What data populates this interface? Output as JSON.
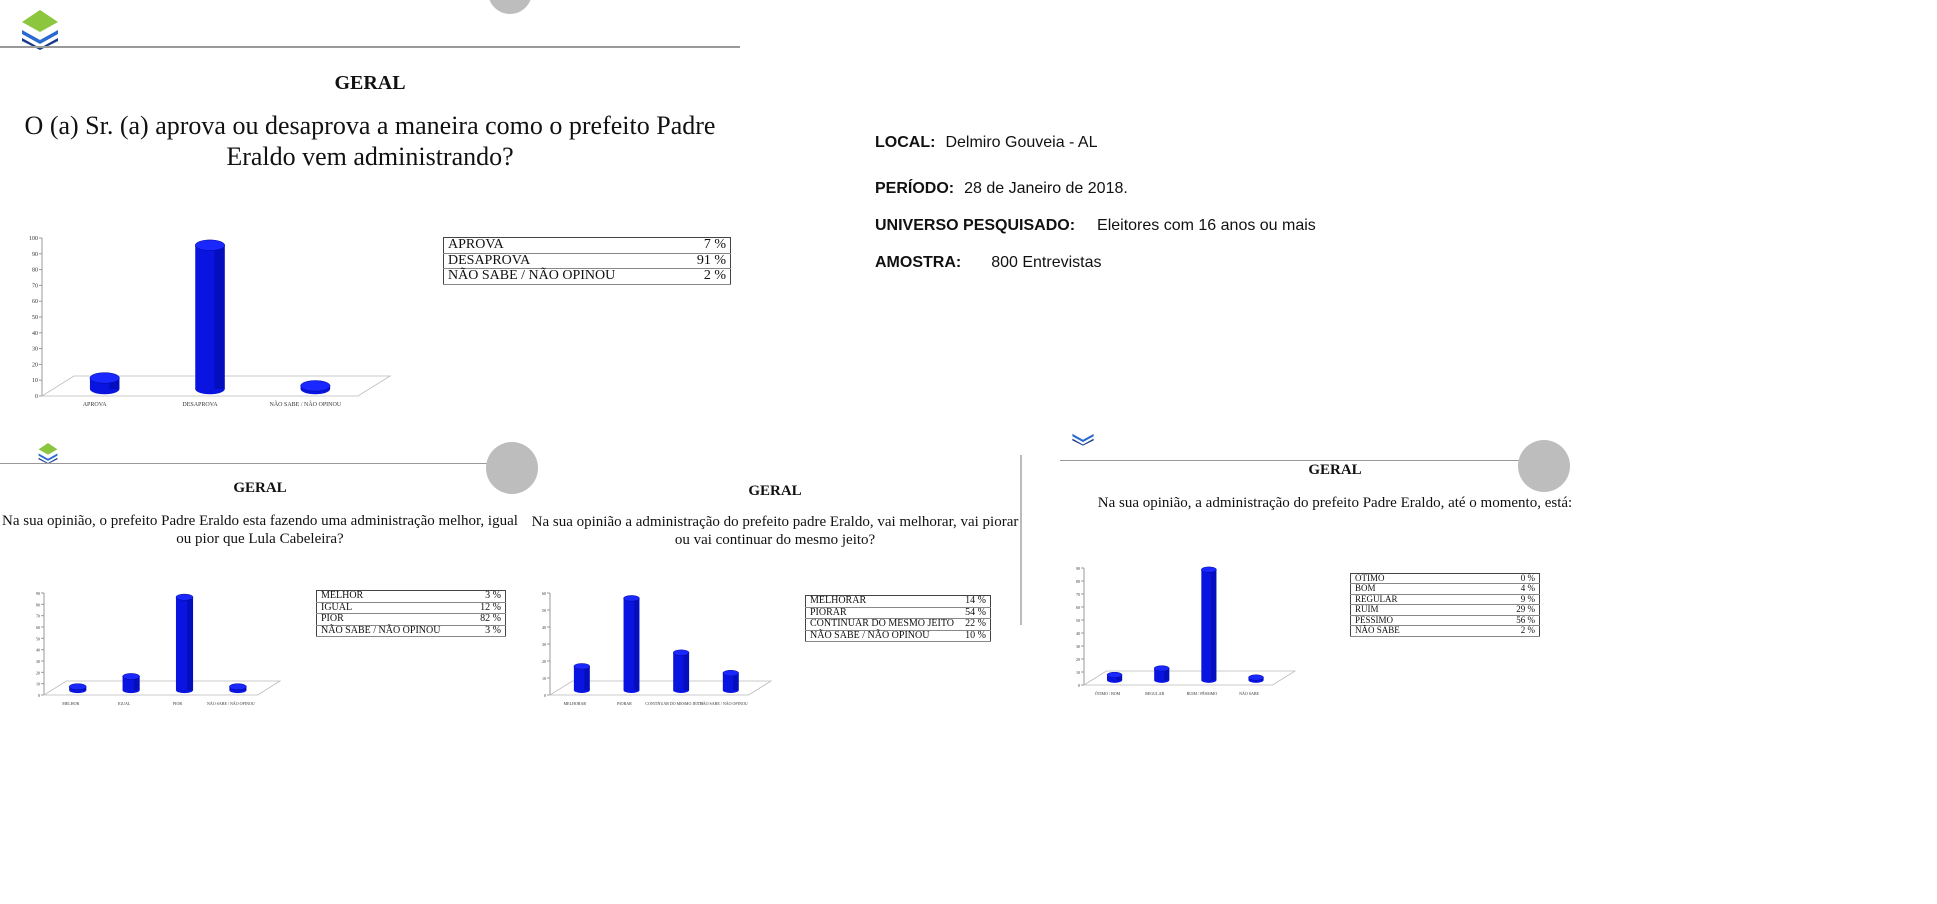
{
  "colors": {
    "bar": "#0a14e0",
    "bar_dark": "#00089a",
    "rule": "#999999"
  },
  "slides": [
    {
      "heading": "GERAL",
      "question": "O (a) Sr. (a) aprova ou desaprova a maneira como o prefeito Padre Eraldo vem administrando?",
      "table": [
        {
          "label": "APROVA",
          "value": "7 %"
        },
        {
          "label": "DESAPROVA",
          "value": "91 %"
        },
        {
          "label": "NÃO SABE / NÃO OPINOU",
          "value": "2 %"
        }
      ]
    },
    {
      "heading": "GERAL",
      "question": "Na sua opinião, o prefeito Padre Eraldo esta fazendo uma administração melhor, igual ou pior que Lula Cabeleira?",
      "table": [
        {
          "label": "MELHOR",
          "value": "3 %"
        },
        {
          "label": "IGUAL",
          "value": "12 %"
        },
        {
          "label": "PIOR",
          "value": "82 %"
        },
        {
          "label": "NÃO SABE / NÃO OPINOU",
          "value": "3 %"
        }
      ]
    },
    {
      "heading": "GERAL",
      "question": "Na sua opinião a administração do prefeito padre Eraldo, vai melhorar, vai piorar ou vai continuar do mesmo jeito?",
      "table": [
        {
          "label": "MELHORAR",
          "value": "14 %"
        },
        {
          "label": "PIORAR",
          "value": "54 %"
        },
        {
          "label": "CONTINUAR DO MESMO JEITO",
          "value": "22 %"
        },
        {
          "label": "NÃO SABE / NÃO OPINOU",
          "value": "10 %"
        }
      ]
    },
    {
      "heading": "GERAL",
      "question": "Na sua opinião, a administração do prefeito Padre Eraldo, até o momento, está:",
      "table": [
        {
          "label": "OTIMO",
          "value": "0 %"
        },
        {
          "label": "BOM",
          "value": "4 %"
        },
        {
          "label": "REGULAR",
          "value": "9 %"
        },
        {
          "label": "RUIM",
          "value": "29 %"
        },
        {
          "label": "PESSIMO",
          "value": "56 %"
        },
        {
          "label": "NÃO SABE",
          "value": "2 %"
        }
      ]
    }
  ],
  "info": {
    "local_label": "LOCAL:",
    "local_value": "Delmiro Gouveia - AL",
    "periodo_label": "PERÍODO:",
    "periodo_value": "28 de Janeiro de 2018.",
    "universo_label": "UNIVERSO PESQUISADO:",
    "universo_value": "Eleitores com 16 anos ou mais",
    "amostra_label": "AMOSTRA:",
    "amostra_value": "800 Entrevistas"
  },
  "chart_data": [
    {
      "type": "bar",
      "categories": [
        "APROVA",
        "DESAPROVA",
        "NÃO SABE / NÃO OPINOU"
      ],
      "values": [
        7,
        91,
        2
      ],
      "ylim": [
        0,
        100
      ],
      "yticks": [
        0,
        10,
        20,
        30,
        40,
        50,
        60,
        70,
        80,
        90,
        100
      ]
    },
    {
      "type": "bar",
      "categories": [
        "MELHOR",
        "IGUAL",
        "PIOR",
        "NÃO SABE / NÃO OPINOU"
      ],
      "values": [
        3,
        12,
        82,
        3
      ],
      "ylim": [
        0,
        90
      ],
      "yticks": [
        0,
        10,
        20,
        30,
        40,
        50,
        60,
        70,
        80,
        90
      ]
    },
    {
      "type": "bar",
      "categories": [
        "MELHORAR",
        "PIORAR",
        "CONTINUAR DO MESMO JEITO",
        "NÃO SABE / NÃO OPINOU"
      ],
      "values": [
        14,
        54,
        22,
        10
      ],
      "ylim": [
        0,
        60
      ],
      "yticks": [
        0,
        10,
        20,
        30,
        40,
        50,
        60
      ]
    },
    {
      "type": "bar",
      "categories": [
        "ÓTIMO / BOM",
        "REGULAR",
        "RUIM / PÉSSIMO",
        "NÃO SABE"
      ],
      "values": [
        4,
        9,
        85,
        2
      ],
      "ylim": [
        0,
        90
      ],
      "yticks": [
        0,
        10,
        20,
        30,
        40,
        50,
        60,
        70,
        80,
        90
      ]
    }
  ]
}
